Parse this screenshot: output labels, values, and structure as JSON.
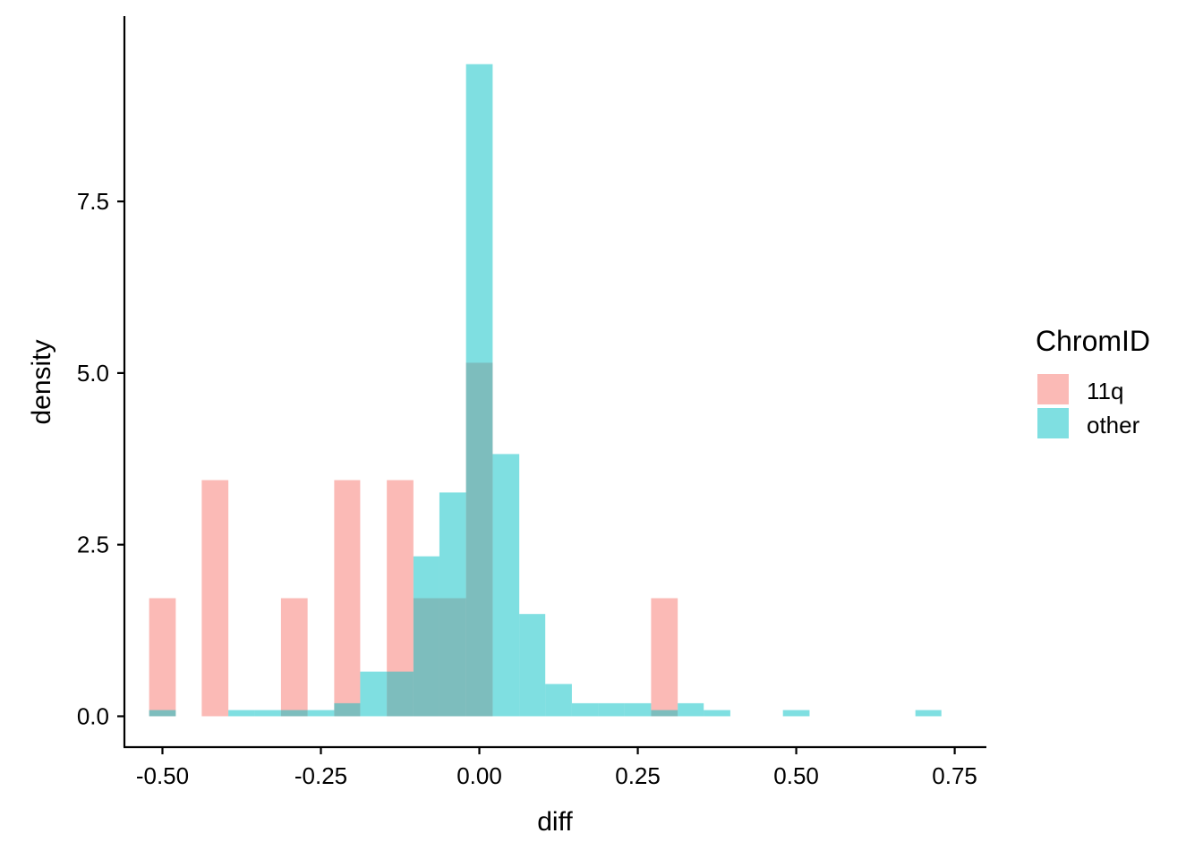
{
  "chart_data": {
    "type": "bar",
    "subtype": "overlapping histogram",
    "title": "",
    "xlabel": "diff",
    "ylabel": "density",
    "xlim": [
      -0.56,
      0.8
    ],
    "ylim": [
      -0.45,
      10.2
    ],
    "xticks": [
      {
        "value": -0.5,
        "label": "-0.50"
      },
      {
        "value": -0.25,
        "label": "-0.25"
      },
      {
        "value": 0.0,
        "label": "0.00"
      },
      {
        "value": 0.25,
        "label": "0.25"
      },
      {
        "value": 0.5,
        "label": "0.50"
      },
      {
        "value": 0.75,
        "label": "0.75"
      }
    ],
    "yticks": [
      {
        "value": 0.0,
        "label": "0.0"
      },
      {
        "value": 2.5,
        "label": "2.5"
      },
      {
        "value": 5.0,
        "label": "5.0"
      },
      {
        "value": 7.5,
        "label": "7.5"
      }
    ],
    "bin_edges": [
      -0.521,
      -0.479,
      -0.438,
      -0.396,
      -0.354,
      -0.313,
      -0.271,
      -0.229,
      -0.188,
      -0.146,
      -0.104,
      -0.063,
      -0.021,
      0.021,
      0.063,
      0.104,
      0.146,
      0.188,
      0.229,
      0.271,
      0.313,
      0.354,
      0.396,
      0.438,
      0.479,
      0.521,
      0.563,
      0.604,
      0.646,
      0.688,
      0.729
    ],
    "series": [
      {
        "name": "11q",
        "color": "#F8766D",
        "values": [
          1.72,
          0,
          3.44,
          0,
          0,
          1.72,
          0,
          3.44,
          0,
          3.44,
          1.72,
          1.72,
          5.15,
          0,
          0,
          0,
          0,
          0,
          0,
          1.72,
          0,
          0,
          0,
          0,
          0,
          0,
          0,
          0,
          0,
          0
        ]
      },
      {
        "name": "other",
        "color": "#00BFC4",
        "values": [
          0.09,
          0,
          0,
          0.09,
          0.09,
          0.09,
          0.09,
          0.19,
          0.65,
          0.65,
          2.33,
          3.26,
          9.5,
          3.82,
          1.49,
          0.47,
          0.19,
          0.19,
          0.19,
          0.09,
          0.19,
          0.09,
          0,
          0,
          0.09,
          0,
          0,
          0,
          0,
          0.09
        ]
      }
    ],
    "fill_opacity": 0.5,
    "grid": false,
    "legend": {
      "title": "ChromID",
      "position": "right",
      "entries": [
        "11q",
        "other"
      ]
    }
  }
}
